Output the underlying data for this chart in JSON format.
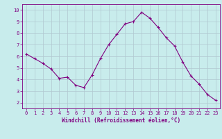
{
  "x": [
    0,
    1,
    2,
    3,
    4,
    5,
    6,
    7,
    8,
    9,
    10,
    11,
    12,
    13,
    14,
    15,
    16,
    17,
    18,
    19,
    20,
    21,
    22,
    23
  ],
  "y": [
    6.2,
    5.8,
    5.4,
    4.9,
    4.1,
    4.2,
    3.5,
    3.3,
    4.4,
    5.8,
    7.0,
    7.9,
    8.8,
    9.0,
    9.8,
    9.3,
    8.5,
    7.6,
    6.9,
    5.5,
    4.3,
    3.6,
    2.7,
    2.2
  ],
  "line_color": "#800080",
  "marker": "+",
  "marker_size": 3,
  "bg_color": "#c8ecec",
  "grid_color": "#b0c8d0",
  "xlabel": "Windchill (Refroidissement éolien,°C)",
  "xlabel_color": "#800080",
  "tick_color": "#800080",
  "ylim": [
    1.5,
    10.5
  ],
  "xlim": [
    -0.5,
    23.5
  ],
  "yticks": [
    2,
    3,
    4,
    5,
    6,
    7,
    8,
    9,
    10
  ],
  "xticks": [
    0,
    1,
    2,
    3,
    4,
    5,
    6,
    7,
    8,
    9,
    10,
    11,
    12,
    13,
    14,
    15,
    16,
    17,
    18,
    19,
    20,
    21,
    22,
    23
  ],
  "spine_color": "#800080",
  "tick_labelsize": 5.0
}
